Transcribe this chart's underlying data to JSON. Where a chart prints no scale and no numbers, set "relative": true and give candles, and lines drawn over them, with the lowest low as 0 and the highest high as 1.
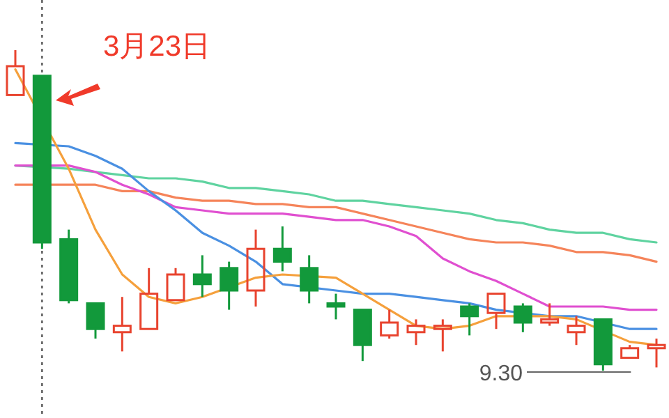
{
  "chart_data": {
    "type": "candlestick",
    "relative": true,
    "categories": [
      null,
      null,
      null,
      null,
      null,
      null,
      null,
      null,
      null,
      null,
      null,
      null,
      null,
      null,
      null,
      null,
      null,
      null,
      null,
      null,
      null,
      null,
      null,
      null,
      null
    ],
    "ohlc": [
      [
        0.86,
        1.0,
        0.86,
        0.95
      ],
      [
        0.92,
        0.92,
        0.38,
        0.4
      ],
      [
        0.41,
        0.44,
        0.21,
        0.22
      ],
      [
        0.21,
        0.21,
        0.1,
        0.13
      ],
      [
        0.12,
        0.23,
        0.06,
        0.14
      ],
      [
        0.13,
        0.32,
        0.13,
        0.24
      ],
      [
        0.22,
        0.32,
        0.22,
        0.3
      ],
      [
        0.3,
        0.36,
        0.23,
        0.27
      ],
      [
        0.32,
        0.34,
        0.19,
        0.25
      ],
      [
        0.25,
        0.44,
        0.2,
        0.38
      ],
      [
        0.38,
        0.45,
        0.31,
        0.34
      ],
      [
        0.32,
        0.36,
        0.21,
        0.25
      ],
      [
        0.21,
        0.24,
        0.16,
        0.2
      ],
      [
        0.19,
        0.19,
        0.03,
        0.08
      ],
      [
        0.11,
        0.19,
        0.1,
        0.15
      ],
      [
        0.12,
        0.16,
        0.08,
        0.14
      ],
      [
        0.13,
        0.16,
        0.06,
        0.14
      ],
      [
        0.2,
        0.21,
        0.11,
        0.17
      ],
      [
        0.18,
        0.24,
        0.13,
        0.24
      ],
      [
        0.2,
        0.21,
        0.12,
        0.15
      ],
      [
        0.15,
        0.21,
        0.14,
        0.16
      ],
      [
        0.12,
        0.17,
        0.08,
        0.14
      ],
      [
        0.16,
        0.16,
        0.0,
        0.02
      ],
      [
        0.04,
        0.08,
        0.04,
        0.07
      ],
      [
        0.07,
        0.1,
        0.01,
        0.08
      ]
    ],
    "colors": [
      "#e8432e",
      "#12993b",
      "#12993b",
      "#12993b",
      "#e8432e",
      "#e8432e",
      "#e8432e",
      "#12993b",
      "#12993b",
      "#e8432e",
      "#12993b",
      "#12993b",
      "#12993b",
      "#12993b",
      "#e8432e",
      "#e8432e",
      "#e8432e",
      "#12993b",
      "#e8432e",
      "#12993b",
      "#e8432e",
      "#e8432e",
      "#12993b",
      "#e8432e",
      "#e8432e"
    ],
    "series": [
      {
        "type": "line",
        "color": "#5fd3a0",
        "values": [
          0.64,
          null,
          0.63,
          0.62,
          0.61,
          0.6,
          0.6,
          0.59,
          0.57,
          0.57,
          0.56,
          0.55,
          0.53,
          0.53,
          0.52,
          0.51,
          0.5,
          0.49,
          0.47,
          0.46,
          0.44,
          0.43,
          0.43,
          0.41,
          0.4
        ]
      },
      {
        "type": "line",
        "color": "#f5845a",
        "values": [
          0.58,
          null,
          0.58,
          0.58,
          0.56,
          0.56,
          0.54,
          0.53,
          0.53,
          0.52,
          0.52,
          0.51,
          0.51,
          0.49,
          0.47,
          0.45,
          0.43,
          0.41,
          0.4,
          0.4,
          0.39,
          0.37,
          0.37,
          0.36,
          0.34
        ]
      },
      {
        "type": "line",
        "color": "#e04fd0",
        "values": [
          0.64,
          null,
          0.64,
          0.62,
          0.58,
          0.55,
          0.51,
          0.5,
          0.49,
          0.49,
          0.49,
          0.48,
          0.47,
          0.47,
          0.45,
          0.42,
          0.35,
          0.31,
          0.28,
          0.24,
          0.2,
          0.2,
          0.2,
          0.19,
          0.19
        ]
      },
      {
        "type": "line",
        "color": "#4a90e2",
        "values": [
          0.71,
          null,
          0.7,
          0.67,
          0.63,
          0.56,
          0.5,
          0.43,
          0.39,
          0.34,
          0.27,
          null,
          0.25,
          0.24,
          0.24,
          0.23,
          0.22,
          0.21,
          0.19,
          null,
          0.17,
          0.17,
          null,
          0.13,
          0.13
        ]
      },
      {
        "type": "line",
        "color": "#f5a03c",
        "values": [
          0.94,
          null,
          0.63,
          0.44,
          0.3,
          0.23,
          0.21,
          0.23,
          null,
          0.29,
          0.3,
          null,
          0.29,
          0.24,
          0.19,
          0.14,
          0.13,
          0.14,
          0.17,
          null,
          0.17,
          0.16,
          null,
          0.09,
          0.08
        ]
      }
    ],
    "annotations": [
      "3月23日",
      "9.30"
    ]
  }
}
